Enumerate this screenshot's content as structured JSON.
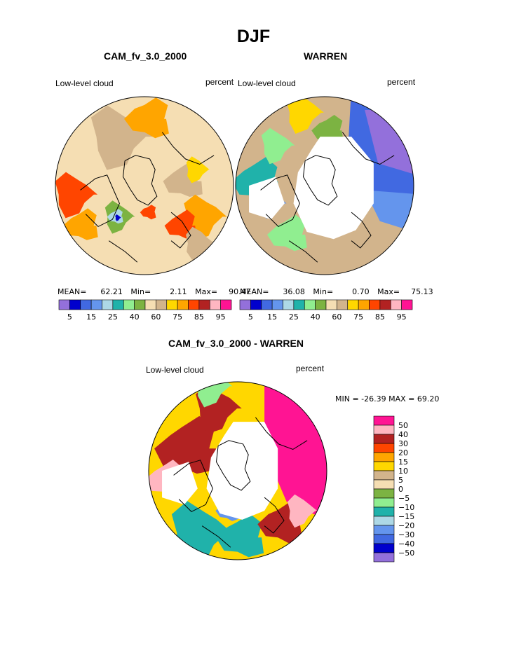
{
  "figure": {
    "title": "DJF",
    "colors": {
      "scale": [
        "#9370db",
        "#0000cd",
        "#4169e1",
        "#6495ed",
        "#add8e6",
        "#20b2aa",
        "#90ee90",
        "#7cb342",
        "#f5deb3",
        "#d2b48c",
        "#ffd700",
        "#ffa500",
        "#ff4500",
        "#b22222",
        "#ffb6c1",
        "#ff1493"
      ],
      "diff_scale": [
        "#9370db",
        "#0000cd",
        "#4169e1",
        "#6495ed",
        "#add8e6",
        "#20b2aa",
        "#90ee90",
        "#7cb342",
        "#f5deb3",
        "#d2b48c",
        "#ffd700",
        "#ffa500",
        "#ff4500",
        "#b22222",
        "#ffb6c1",
        "#ff1493"
      ],
      "missing": "#ffffff",
      "coast": "#000000"
    }
  },
  "chart_data": [
    {
      "type": "heatmap",
      "projection": "north-polar-stereographic",
      "title": "CAM_fv_3.0_2000",
      "left_label": "Low-level cloud",
      "right_label": "percent",
      "stats": {
        "mean_label": "MEAN=",
        "mean": "62.21",
        "min_label": "Min=",
        "min": "2.11",
        "max_label": "Max=",
        "max": "90.47"
      },
      "colorbar": {
        "orientation": "horizontal",
        "levels": [
          5,
          10,
          15,
          20,
          25,
          30,
          40,
          50,
          60,
          70,
          75,
          80,
          85,
          90,
          95
        ],
        "tick_labels": [
          "5",
          "15",
          "25",
          "40",
          "60",
          "75",
          "85",
          "95"
        ]
      }
    },
    {
      "type": "heatmap",
      "projection": "north-polar-stereographic",
      "title": "WARREN",
      "left_label": "Low-level cloud",
      "right_label": "percent",
      "stats": {
        "mean_label": "MEAN=",
        "mean": "36.08",
        "min_label": "Min=",
        "min": "0.70",
        "max_label": "Max=",
        "max": "75.13"
      },
      "colorbar": {
        "orientation": "horizontal",
        "levels": [
          5,
          10,
          15,
          20,
          25,
          30,
          40,
          50,
          60,
          70,
          75,
          80,
          85,
          90,
          95
        ],
        "tick_labels": [
          "5",
          "15",
          "25",
          "40",
          "60",
          "75",
          "85",
          "95"
        ]
      }
    },
    {
      "type": "heatmap",
      "projection": "north-polar-stereographic",
      "title": "CAM_fv_3.0_2000 - WARREN",
      "left_label": "Low-level cloud",
      "right_label": "percent",
      "stats_text": "MIN = -26.39 MAX =  69.20",
      "colorbar": {
        "orientation": "vertical",
        "levels": [
          -50,
          -40,
          -30,
          -20,
          -15,
          -10,
          -5,
          0,
          5,
          10,
          15,
          20,
          30,
          40,
          50
        ],
        "tick_labels": [
          "50",
          "40",
          "30",
          "20",
          "15",
          "10",
          "5",
          "0",
          "−5",
          "−10",
          "−15",
          "−20",
          "−30",
          "−40",
          "−50"
        ]
      }
    }
  ]
}
